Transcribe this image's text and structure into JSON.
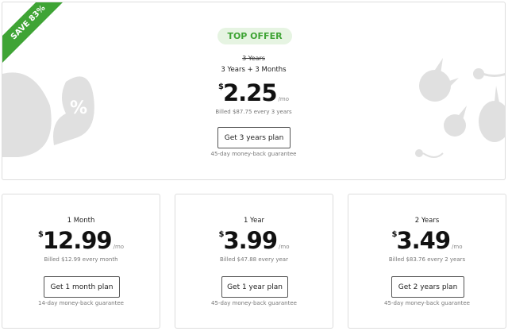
{
  "featured": {
    "ribbon": "SAVE 83%",
    "badge": "TOP OFFER",
    "old_term": "3 Years",
    "term": "3 Years + 3 Months",
    "currency": "$",
    "price": "2.25",
    "unit": "/mo",
    "billed": "Billed $87.75 every 3 years",
    "button": "Get 3 years plan",
    "guarantee": "45-day money-back guarantee"
  },
  "plans": [
    {
      "term": "1 Month",
      "currency": "$",
      "price": "12.99",
      "unit": "/mo",
      "billed": "Billed $12.99 every month",
      "button": "Get 1 month plan",
      "guarantee": "14-day money-back guarantee"
    },
    {
      "term": "1 Year",
      "currency": "$",
      "price": "3.99",
      "unit": "/mo",
      "billed": "Billed $47.88 every year",
      "button": "Get 1 year plan",
      "guarantee": "45-day money-back guarantee"
    },
    {
      "term": "2 Years",
      "currency": "$",
      "price": "3.49",
      "unit": "/mo",
      "billed": "Billed $83.76 every 2 years",
      "button": "Get 2 years plan",
      "guarantee": "45-day money-back guarantee"
    }
  ],
  "colors": {
    "accent": "#3fa435",
    "badge_bg": "#e6f4e2",
    "decoration": "#e0e0e0"
  }
}
